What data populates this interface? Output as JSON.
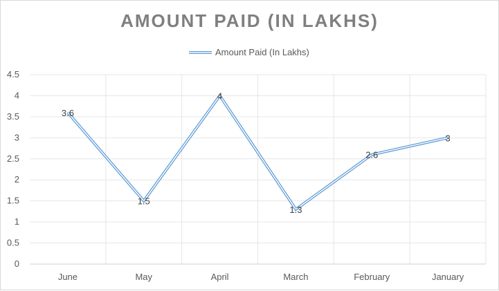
{
  "chart_data": {
    "type": "line",
    "title": "AMOUNT PAID (IN LAKHS)",
    "categories": [
      "June",
      "May",
      "April",
      "March",
      "February",
      "January"
    ],
    "series": [
      {
        "name": "Amount Paid (In Lakhs)",
        "values": [
          3.6,
          1.5,
          4,
          1.3,
          2.6,
          3
        ],
        "color": "#5b9bd5"
      }
    ],
    "data_labels": [
      "3.6",
      "1.5",
      "4",
      "1.3",
      "2.6",
      "3"
    ],
    "y_ticks": [
      "0",
      "0.5",
      "1",
      "1.5",
      "2",
      "2.5",
      "3",
      "3.5",
      "4",
      "4.5"
    ],
    "ylim": [
      0,
      4.5
    ],
    "grid": true,
    "legend_position": "top"
  }
}
